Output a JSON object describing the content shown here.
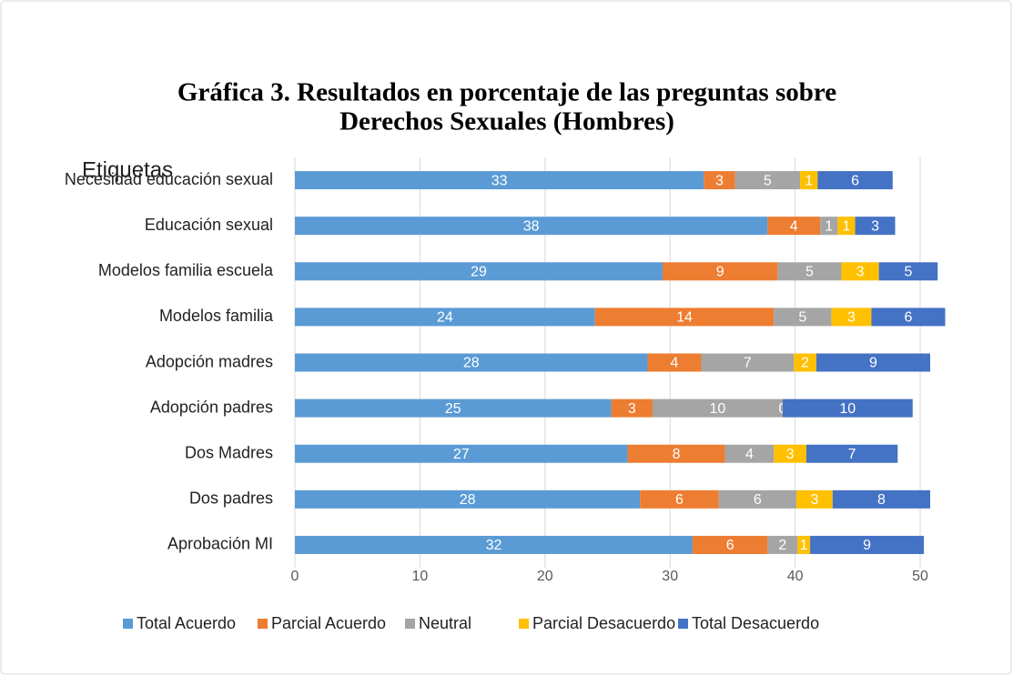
{
  "chart_data": {
    "type": "stacked-barh",
    "title": [
      "Gráfica 3. Resultados en porcentaje de las preguntas sobre",
      "Derechos Sexuales (Hombres)"
    ],
    "y_axis_title": "Etiquetas",
    "categories": [
      "Necesidad educación sexual",
      "Educación sexual",
      "Modelos familia escuela",
      "Modelos familia",
      "Adopción madres",
      "Adopción padres",
      "Dos Madres",
      "Dos padres",
      "Aprobación MI"
    ],
    "series": [
      {
        "name": "Total Acuerdo",
        "color": "#5b9bd5",
        "values": [
          32.7,
          37.8,
          29.4,
          24.0,
          28.2,
          25.3,
          26.6,
          27.6,
          31.8
        ],
        "value_labels": [
          "33",
          "38",
          "29",
          "24",
          "28",
          "25",
          "27",
          "28",
          "32"
        ]
      },
      {
        "name": "Parcial Acuerdo",
        "color": "#ed7d31",
        "values": [
          2.5,
          4.2,
          9.2,
          14.3,
          4.3,
          3.3,
          7.8,
          6.3,
          6.0
        ],
        "value_labels": [
          "3",
          "4",
          "9",
          "14",
          "4",
          "3",
          "8",
          "6",
          "6"
        ]
      },
      {
        "name": "Neutral",
        "color": "#a5a5a5",
        "values": [
          5.2,
          1.4,
          5.1,
          4.6,
          7.4,
          10.4,
          3.9,
          6.2,
          2.4
        ],
        "value_labels": [
          "5",
          "1",
          "5",
          "5",
          "7",
          "10",
          "4",
          "6",
          "2"
        ]
      },
      {
        "name": "Parcial Desacuerdo",
        "color": "#ffc000",
        "values": [
          1.4,
          1.4,
          3.0,
          3.2,
          1.8,
          0,
          2.6,
          2.9,
          1.0
        ],
        "value_labels": [
          "1",
          "1",
          "3",
          "3",
          "2",
          "0",
          "3",
          "3",
          "1"
        ]
      },
      {
        "name": "Total Desacuerdo",
        "color": "#4472c4",
        "values": [
          6.0,
          3.2,
          4.7,
          5.9,
          9.1,
          10.4,
          7.3,
          7.8,
          9.1
        ],
        "value_labels": [
          "6",
          "3",
          "5",
          "6",
          "9",
          "10",
          "7",
          "8",
          "9"
        ]
      }
    ],
    "xlim": [
      0,
      52.5
    ],
    "xticks": [
      0,
      10,
      20,
      30,
      40,
      50
    ],
    "grid": true,
    "legend": "bottom"
  }
}
